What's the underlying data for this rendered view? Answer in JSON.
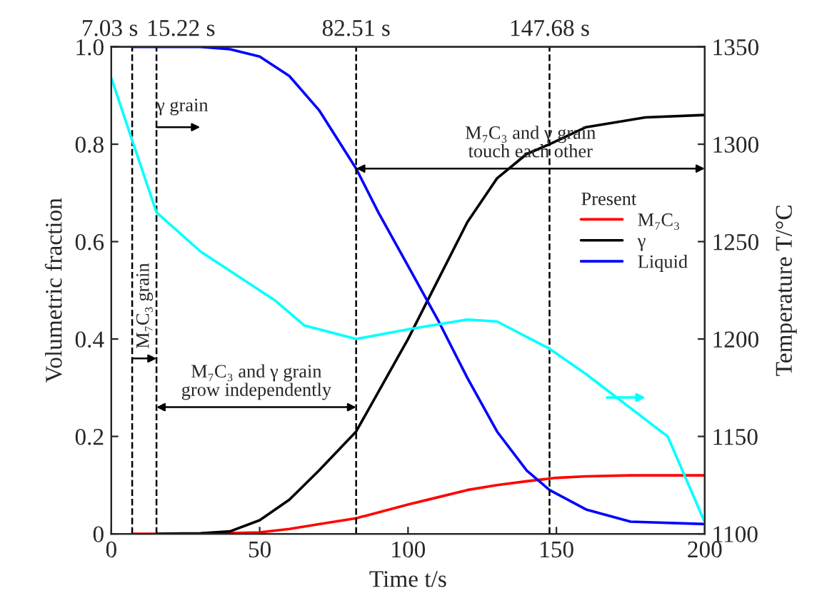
{
  "chart_data": {
    "type": "line",
    "xlabel": "Time t/s",
    "ylabel": "Volumetric fraction",
    "y2label": "Temperature T/°C",
    "legend_title": "Present",
    "xlim": [
      0,
      200
    ],
    "xticks": [
      0,
      50,
      100,
      150,
      200
    ],
    "ylim": [
      0,
      1.0
    ],
    "yticks": [
      {
        "value": 0,
        "label": "0"
      },
      0.2,
      0.4,
      0.6,
      0.8,
      {
        "value": 1.0,
        "label": "1.0"
      }
    ],
    "y2lim": [
      1100,
      1350
    ],
    "y2ticks": [
      1100,
      1150,
      1200,
      1250,
      1300,
      1350
    ],
    "series": [
      {
        "name": "M₇C₃",
        "color": "#ff0000",
        "x": [
          7.03,
          30,
          50,
          60,
          70,
          82.51,
          100,
          110,
          120,
          130,
          140,
          150,
          160,
          175,
          200
        ],
        "values": [
          0,
          0,
          0.003,
          0.01,
          0.02,
          0.032,
          0.06,
          0.075,
          0.09,
          0.1,
          0.108,
          0.115,
          0.118,
          0.12,
          0.12
        ]
      },
      {
        "name": "γ",
        "color": "#000000",
        "x": [
          15.22,
          30,
          40,
          50,
          60,
          70,
          82.51,
          100,
          110,
          120,
          130,
          140,
          147.68,
          160,
          180,
          200
        ],
        "values": [
          0,
          0.001,
          0.005,
          0.028,
          0.07,
          0.13,
          0.21,
          0.4,
          0.52,
          0.64,
          0.73,
          0.78,
          0.8,
          0.835,
          0.855,
          0.86
        ]
      },
      {
        "name": "Liquid",
        "color": "#0000ff",
        "x": [
          7.03,
          30,
          40,
          50,
          60,
          70,
          82.51,
          90,
          100,
          110,
          120,
          130,
          140,
          147.68,
          160,
          175,
          200
        ],
        "values": [
          1.0,
          1.0,
          0.995,
          0.98,
          0.94,
          0.87,
          0.75,
          0.66,
          0.55,
          0.44,
          0.32,
          0.21,
          0.13,
          0.09,
          0.05,
          0.025,
          0.02
        ]
      },
      {
        "color": "#00ffff",
        "axis": "y2",
        "x": [
          0,
          7.03,
          15.22,
          30,
          45,
          55,
          65,
          82.51,
          100,
          120,
          130,
          147.68,
          160,
          187.5,
          200
        ],
        "values": [
          1334,
          1302,
          1265,
          1245,
          1230,
          1220,
          1207,
          1200,
          1205,
          1210,
          1209,
          1195,
          1182,
          1150,
          1106
        ]
      }
    ],
    "ref_lines": [
      {
        "axis": "x",
        "value": 7.03,
        "label": "7.03 s",
        "color": "#000000",
        "line_style": "dashed"
      },
      {
        "axis": "x",
        "value": 15.22,
        "label": "15.22 s",
        "color": "#000000",
        "line_style": "dashed"
      },
      {
        "axis": "x",
        "value": 82.51,
        "label": "82.51 s",
        "color": "#000000",
        "line_style": "dashed"
      },
      {
        "axis": "x",
        "value": 147.68,
        "label": "147.68 s",
        "color": "#000000",
        "line_style": "dashed"
      }
    ],
    "annotations": [
      "γ grain",
      "M₇C₃ grain",
      "M₇C₃ and γ grain\ngrow independently",
      "M₇C₃ and γ grain\ntouch each other"
    ],
    "legend": "right",
    "grid": false
  }
}
